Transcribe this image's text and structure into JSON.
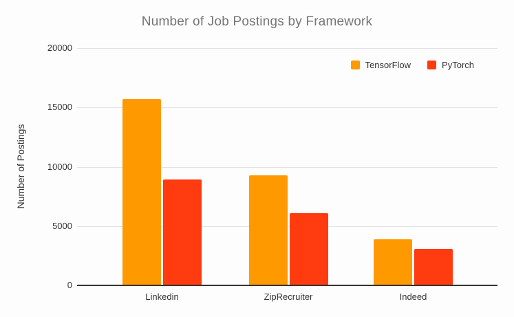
{
  "chart_data": {
    "type": "bar",
    "title": "Number of Job Postings by Framework",
    "xlabel": "",
    "ylabel": "Number of Postings",
    "categories": [
      "Linkedin",
      "ZipRecruiter",
      "Indeed"
    ],
    "series": [
      {
        "name": "TensorFlow",
        "color": "#ff9900",
        "values": [
          15700,
          9300,
          3900
        ]
      },
      {
        "name": "PyTorch",
        "color": "#ff3b0f",
        "values": [
          8900,
          6100,
          3100
        ]
      }
    ],
    "ylim": [
      0,
      20000
    ],
    "yticks": [
      0,
      5000,
      10000,
      15000,
      20000
    ],
    "grid": true,
    "legend_position": "top-right",
    "colors": {
      "title_text": "#757575",
      "axis_text": "#333333",
      "gridline": "#e3e3e3",
      "baseline": "#333333",
      "background": "#fdfdfd"
    }
  }
}
